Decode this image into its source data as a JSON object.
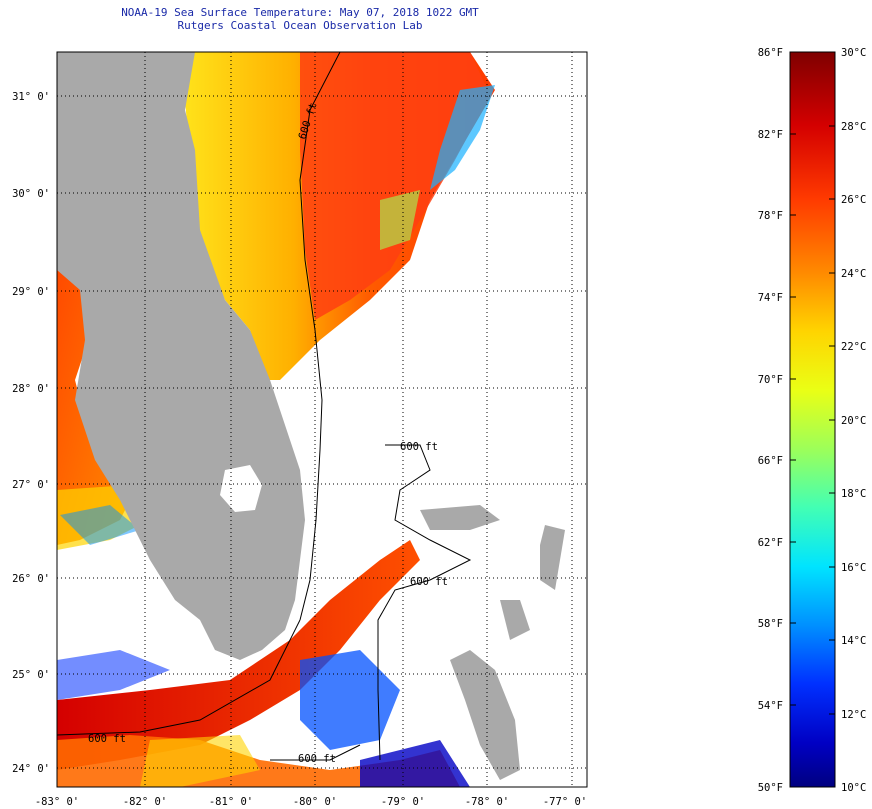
{
  "header": {
    "title": "NOAA-19 Sea Surface Temperature:  May 07, 2018 1022 GMT",
    "subtitle": "Rutgers Coastal Ocean Observation Lab"
  },
  "map": {
    "lat_labels": [
      "31° 0'",
      "30° 0'",
      "29° 0'",
      "28° 0'",
      "27° 0'",
      "26° 0'",
      "25° 0'",
      "24° 0'"
    ],
    "lon_labels": [
      "-83° 0'",
      "-82° 0'",
      "-81° 0'",
      "-80° 0'",
      "-79° 0'",
      "-78° 0'",
      "-77° 0'"
    ],
    "isobath_labels": [
      "600 ft",
      "600 ft",
      "600 ft",
      "600 ft",
      "600 ft"
    ],
    "colors": {
      "land": "#a9a9a9",
      "cloud": "#ffffff"
    }
  },
  "colorbar": {
    "fahrenheit_labels": [
      "86°F",
      "82°F",
      "78°F",
      "74°F",
      "70°F",
      "66°F",
      "62°F",
      "58°F",
      "54°F",
      "50°F"
    ],
    "celsius_labels": [
      "30°C",
      "28°C",
      "26°C",
      "24°C",
      "22°C",
      "20°C",
      "18°C",
      "16°C",
      "14°C",
      "12°C",
      "10°C"
    ],
    "palette": [
      "#7f0000",
      "#d40000",
      "#ff3a00",
      "#ff8a00",
      "#ffd400",
      "#eaff15",
      "#9dff59",
      "#42ffb4",
      "#00e4ff",
      "#0090ff",
      "#0030ff",
      "#0000c4",
      "#000080"
    ]
  }
}
